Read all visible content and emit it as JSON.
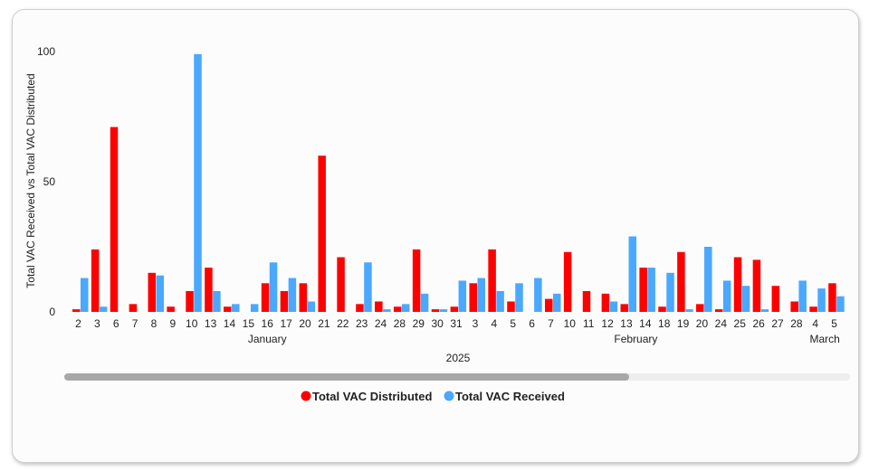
{
  "chart_data": {
    "type": "bar",
    "ylabel": "Total VAC Received vs Total VAC Distributed",
    "xlabel_year": "2025",
    "ylim": [
      0,
      100
    ],
    "yticks": [
      0,
      50,
      100
    ],
    "categories": [
      "2",
      "3",
      "6",
      "7",
      "8",
      "9",
      "10",
      "13",
      "14",
      "15",
      "16",
      "17",
      "20",
      "21",
      "22",
      "23",
      "24",
      "28",
      "29",
      "30",
      "31",
      "3",
      "4",
      "5",
      "6",
      "7",
      "10",
      "11",
      "12",
      "13",
      "14",
      "18",
      "19",
      "20",
      "24",
      "25",
      "26",
      "27",
      "28",
      "4",
      "5"
    ],
    "months": [
      {
        "label": "January",
        "start": 0,
        "end": 20
      },
      {
        "label": "February",
        "start": 21,
        "end": 38
      },
      {
        "label": "March",
        "start": 39,
        "end": 40
      }
    ],
    "series": [
      {
        "name": "Total VAC Distributed",
        "color": "#ff0000",
        "values": [
          1,
          24,
          71,
          3,
          15,
          2,
          8,
          17,
          2,
          0,
          11,
          8,
          11,
          60,
          21,
          3,
          4,
          2,
          24,
          1,
          2,
          11,
          24,
          4,
          0,
          5,
          23,
          8,
          7,
          3,
          17,
          2,
          23,
          3,
          1,
          21,
          20,
          10,
          4,
          2,
          11
        ]
      },
      {
        "name": "Total VAC Received",
        "color": "#4aa8ff",
        "values": [
          13,
          2,
          0,
          0,
          14,
          0,
          99,
          8,
          3,
          3,
          19,
          13,
          4,
          0,
          0,
          19,
          1,
          3,
          7,
          1,
          12,
          13,
          8,
          11,
          13,
          7,
          0,
          0,
          4,
          29,
          17,
          15,
          1,
          25,
          12,
          10,
          1,
          0,
          12,
          9,
          6
        ]
      }
    ],
    "legend_position": "bottom-center",
    "grid": false
  }
}
